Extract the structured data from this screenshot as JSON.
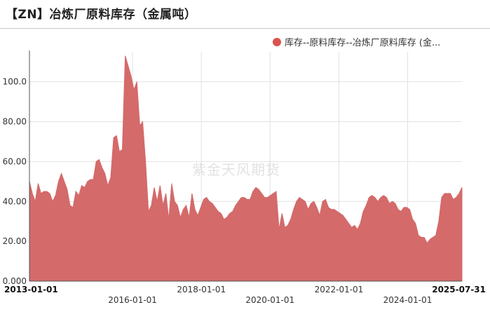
{
  "title": "【ZN】冶炼厂原料库存（金属吨）",
  "legend": {
    "label": "库存--原料库存--冶炼厂原料库存 (金...",
    "color": "#d9534f"
  },
  "watermark": "紫金天风期货",
  "colors": {
    "area_fill": "#d46a6a",
    "area_line": "#d46a6a",
    "grid": "#e2e2e2",
    "axis": "#555555"
  },
  "chart_data": {
    "type": "area",
    "title": "【ZN】冶炼厂原料库存（金属吨）",
    "series": [
      {
        "name": "库存--原料库存--冶炼厂原料库存 (金...",
        "values": [
          50,
          44,
          40,
          49,
          44,
          45,
          45,
          44,
          40,
          43,
          50,
          54,
          50,
          46,
          38,
          37,
          45,
          43,
          48,
          47,
          50,
          51,
          51,
          60,
          61,
          57,
          54,
          48,
          52,
          72,
          73,
          65,
          66,
          113,
          108,
          103,
          96,
          100,
          78,
          80,
          60,
          35,
          38,
          47,
          40,
          48,
          38,
          44,
          31,
          49,
          40,
          38,
          32,
          36,
          38,
          32,
          44,
          36,
          33,
          37,
          41,
          42,
          40,
          39,
          37,
          35,
          34,
          31,
          32,
          34,
          35,
          38,
          40,
          42,
          42,
          41,
          41,
          45,
          47,
          46,
          44,
          42,
          42,
          43,
          44,
          45,
          26,
          34,
          27,
          28,
          31,
          36,
          40,
          42,
          41,
          40,
          36,
          39,
          40,
          37,
          33,
          40,
          41,
          37,
          36,
          36,
          35,
          34,
          33,
          31,
          29,
          27,
          28,
          26,
          29,
          35,
          38,
          42,
          43,
          42,
          40,
          42,
          43,
          42,
          39,
          40,
          39,
          36,
          35,
          37,
          37,
          36,
          31,
          29,
          23,
          22,
          22,
          19,
          21,
          22,
          23,
          30,
          42,
          44,
          44,
          44,
          41,
          42,
          44,
          47
        ]
      }
    ],
    "x_start": "2013-01-01",
    "x_end": "2025-07-31",
    "x_ticks": [
      "2013-01-01",
      "2016-01-01",
      "2018-01-01",
      "2020-01-01",
      "2022-01-01",
      "2024-01-01",
      "2025-07-31"
    ],
    "ylim": [
      0,
      115
    ],
    "y_ticks": [
      "0.000",
      "20.00",
      "40.00",
      "60.00",
      "80.00",
      "100.0"
    ],
    "grid": true,
    "legend_position": "top-right"
  }
}
